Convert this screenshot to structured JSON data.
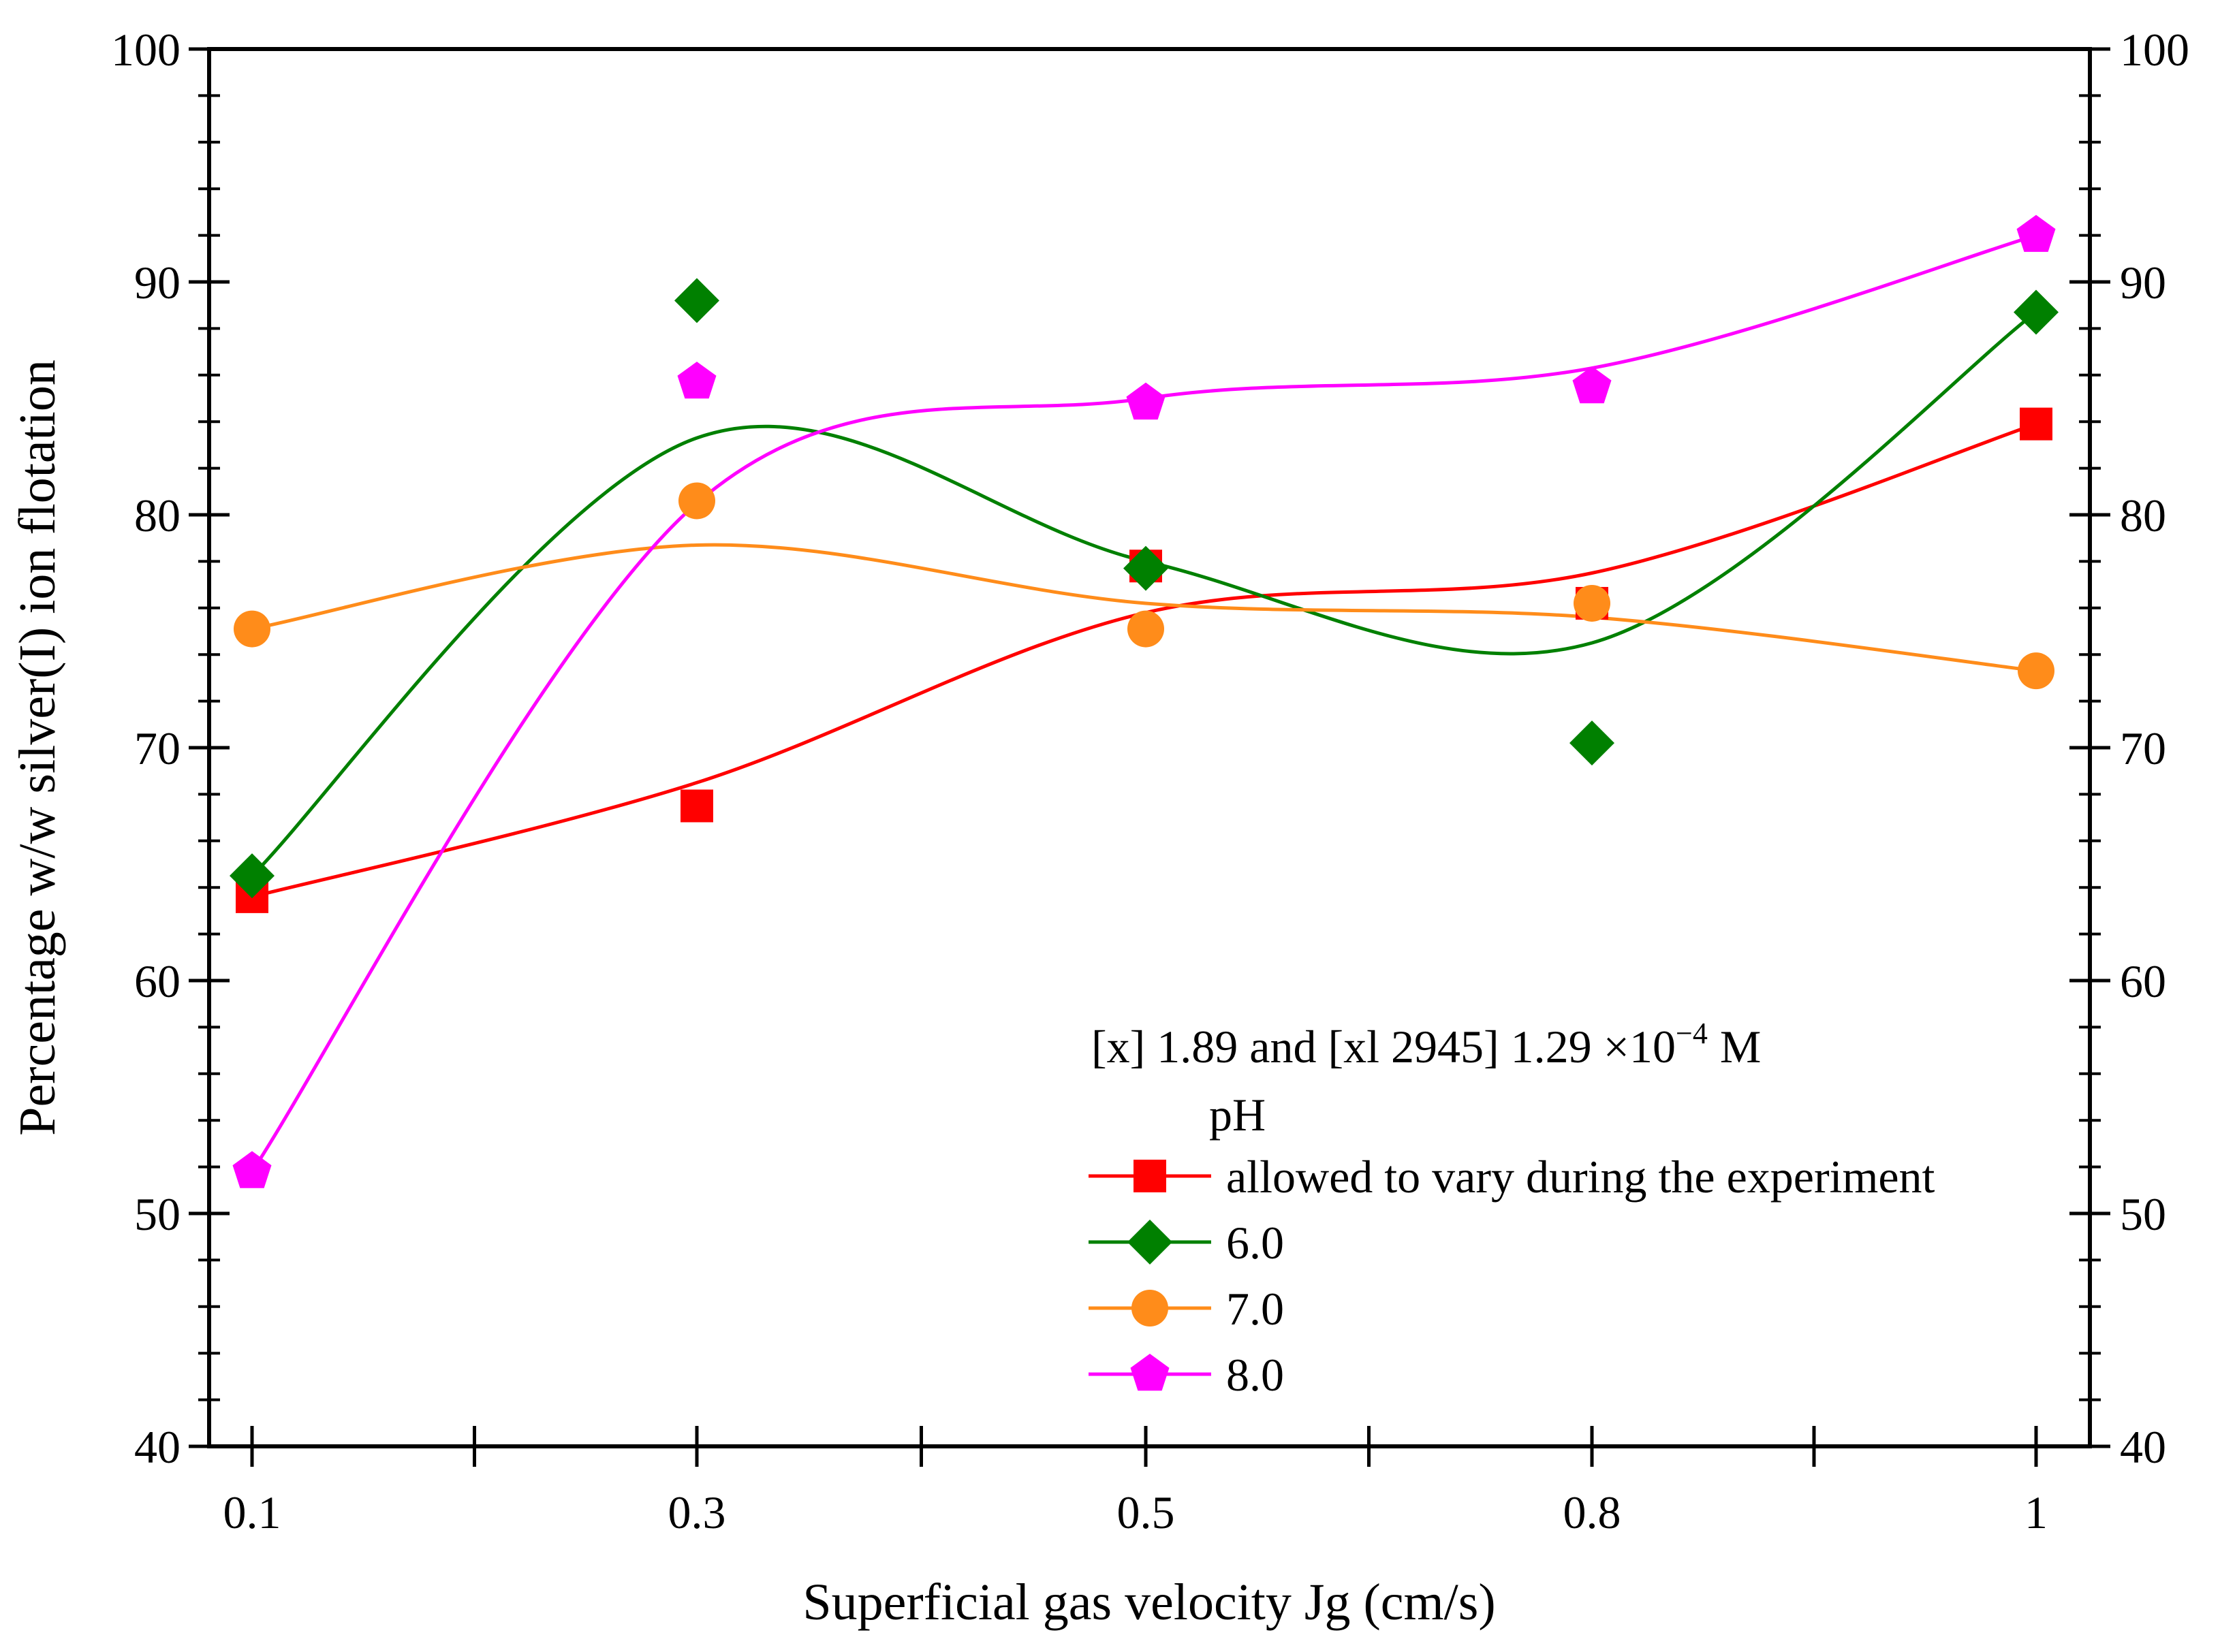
{
  "chart_data": {
    "type": "line",
    "title": "",
    "xlabel": "Superficial gas velocity Jg (cm/s)",
    "ylabel": "Percentage w/w silver(I) ion flotation",
    "x_categories": [
      "0.1",
      "0.3",
      "0.5",
      "0.8",
      "1"
    ],
    "ylim": [
      40,
      100
    ],
    "y_ticks": [
      "40",
      "50",
      "60",
      "70",
      "80",
      "90",
      "100"
    ],
    "y2_ticks": [
      "40",
      "50",
      "60",
      "70",
      "80",
      "90",
      "100"
    ],
    "legend": {
      "placement": "bottom-center",
      "header_line1": "[x] 1.89 and [xl 2945] 1.29 ×10",
      "header_sup": "−4",
      "header_unit": "M",
      "header_line2": "pH"
    },
    "series": [
      {
        "name": "allowed to vary during the experiment",
        "color": "#ff0000",
        "marker": "square",
        "values": [
          63.6,
          67.5,
          77.8,
          76.2,
          83.9
        ],
        "fit": [
          63.6,
          68.5,
          75.8,
          77.5,
          83.9
        ]
      },
      {
        "name": "6.0",
        "color": "#008000",
        "marker": "diamond",
        "values": [
          64.5,
          89.2,
          77.7,
          70.2,
          88.7
        ],
        "fit": [
          64.5,
          83.3,
          78.0,
          74.5,
          88.7
        ]
      },
      {
        "name": "7.0",
        "color": "#ff8c1a",
        "marker": "circle",
        "values": [
          75.1,
          80.6,
          75.1,
          76.2,
          73.3
        ],
        "fit": [
          75.1,
          78.7,
          76.2,
          75.6,
          73.3
        ]
      },
      {
        "name": "8.0",
        "color": "#ff00ff",
        "marker": "pentagon",
        "values": [
          51.8,
          85.7,
          84.8,
          85.5,
          92.0
        ],
        "fit": [
          51.8,
          80.5,
          85.0,
          86.3,
          92.0
        ]
      }
    ]
  }
}
